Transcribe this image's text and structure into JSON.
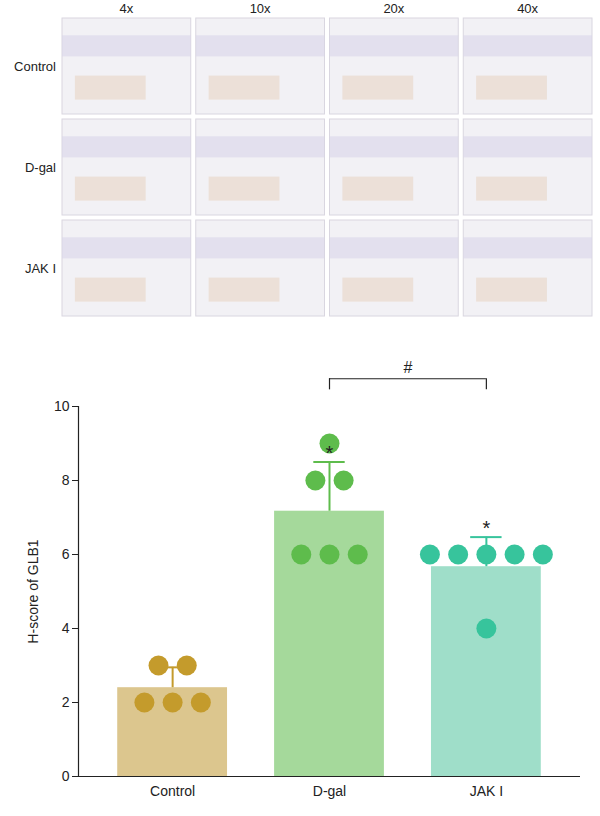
{
  "panels": {
    "column_labels": [
      "4x",
      "10x",
      "20x",
      "40x"
    ],
    "row_labels": [
      "Control",
      "D-gal",
      "JAK I"
    ]
  },
  "chart_data": {
    "type": "bar",
    "categories": [
      "Control",
      "D-gal",
      "JAK I"
    ],
    "values": [
      2.4,
      7.17,
      5.67
    ],
    "error": [
      0.55,
      1.33,
      0.8
    ],
    "points": [
      [
        3,
        3,
        2,
        2,
        2
      ],
      [
        9,
        8,
        8,
        6,
        6,
        6
      ],
      [
        6,
        6,
        6,
        6,
        6,
        4
      ]
    ],
    "colors": [
      "#dcc68e",
      "#a5d99b",
      "#9fdec9"
    ],
    "point_colors": [
      "#c49b2c",
      "#5ebc4c",
      "#37c49c"
    ],
    "ylim": [
      0,
      10
    ],
    "yticks": [
      0,
      2,
      4,
      6,
      8,
      10
    ],
    "y_label": "H-score of GLB1",
    "grid": false,
    "data_labels": false,
    "annotations": [
      {
        "category": "D-gal",
        "text": "*"
      },
      {
        "category": "JAK I",
        "text": "*"
      }
    ],
    "brackets": [
      {
        "from": "D-gal",
        "to": "JAK I",
        "text": "#"
      }
    ]
  }
}
